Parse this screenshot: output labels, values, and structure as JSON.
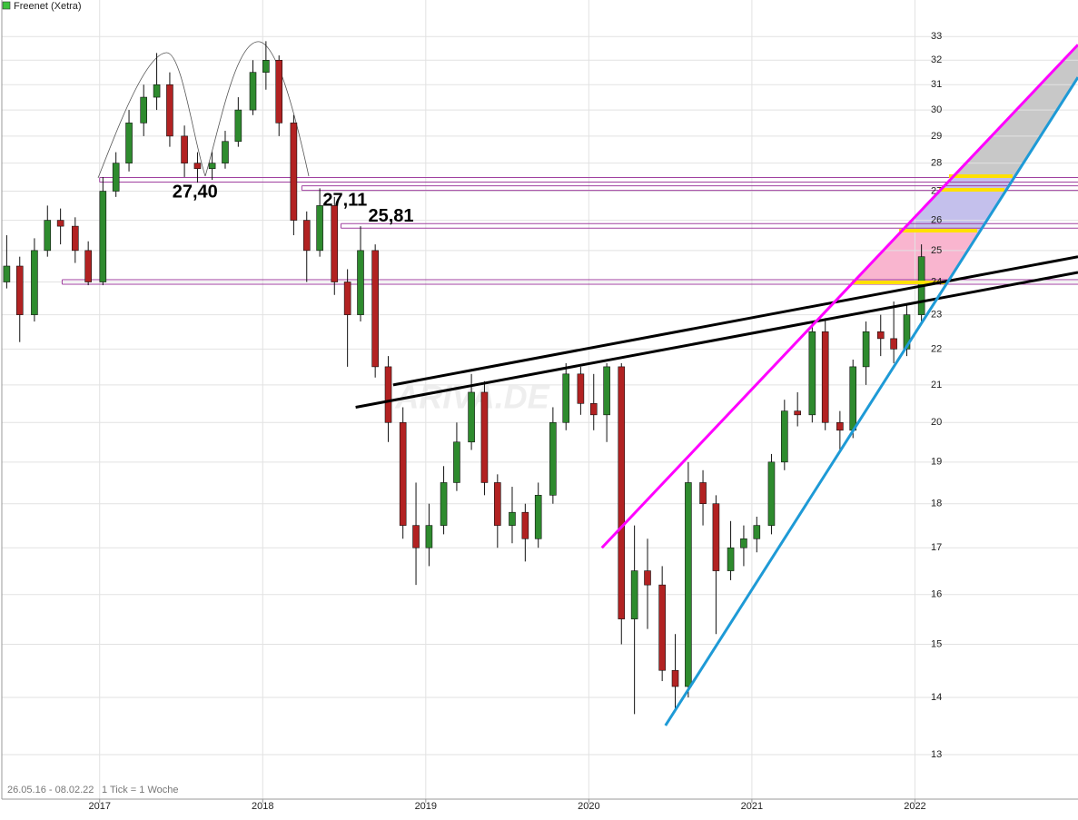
{
  "chart_data": {
    "type": "candlestick",
    "title": "Freenet (Xetra)",
    "subtitle": "26.05.16 - 08.02.22",
    "note": "1 Tick = 1 Woche",
    "watermark": "ARIVA.DE",
    "x": [
      2016.43,
      2016.51,
      2016.6,
      2016.68,
      2016.76,
      2016.85,
      2016.93,
      2017.02,
      2017.1,
      2017.18,
      2017.27,
      2017.35,
      2017.43,
      2017.52,
      2017.6,
      2017.69,
      2017.77,
      2017.85,
      2017.94,
      2018.02,
      2018.1,
      2018.19,
      2018.27,
      2018.35,
      2018.44,
      2018.52,
      2018.6,
      2018.69,
      2018.77,
      2018.86,
      2018.94,
      2019.02,
      2019.11,
      2019.19,
      2019.28,
      2019.36,
      2019.44,
      2019.53,
      2019.61,
      2019.69,
      2019.78,
      2019.86,
      2019.95,
      2020.03,
      2020.11,
      2020.2,
      2020.28,
      2020.36,
      2020.45,
      2020.53,
      2020.61,
      2020.7,
      2020.78,
      2020.87,
      2020.95,
      2021.03,
      2021.12,
      2021.2,
      2021.28,
      2021.37,
      2021.45,
      2021.54,
      2021.62,
      2021.7,
      2021.79,
      2021.87,
      2021.95,
      2022.04
    ],
    "open": [
      24.0,
      24.5,
      23.0,
      25.0,
      26.0,
      25.8,
      25.0,
      24.0,
      27.0,
      28.0,
      29.5,
      30.5,
      31.0,
      29.0,
      28.0,
      27.8,
      28.0,
      28.8,
      30.0,
      31.5,
      32.0,
      29.5,
      26.0,
      25.0,
      26.5,
      24.0,
      23.0,
      25.0,
      21.5,
      20.0,
      17.5,
      17.0,
      17.5,
      18.5,
      19.5,
      20.8,
      18.5,
      17.5,
      17.8,
      17.2,
      18.2,
      20.0,
      21.3,
      20.5,
      20.2,
      21.5,
      15.5,
      16.5,
      16.2,
      14.5,
      14.2,
      18.5,
      18.0,
      16.5,
      17.0,
      17.2,
      17.5,
      19.0,
      20.3,
      20.2,
      22.5,
      20.0,
      19.8,
      21.5,
      22.5,
      22.3,
      22.0,
      23.0
    ],
    "high": [
      25.5,
      24.8,
      25.4,
      26.5,
      26.4,
      26.1,
      25.3,
      27.5,
      28.4,
      30.0,
      31.0,
      32.3,
      31.5,
      29.4,
      28.4,
      28.4,
      29.2,
      30.5,
      32.0,
      32.8,
      32.2,
      29.8,
      26.3,
      27.1,
      26.8,
      24.4,
      25.8,
      25.2,
      21.8,
      20.4,
      18.5,
      18.0,
      18.9,
      20.0,
      21.3,
      21.1,
      18.7,
      18.4,
      18.0,
      18.5,
      20.4,
      21.6,
      21.5,
      21.3,
      21.6,
      21.6,
      17.5,
      17.2,
      16.6,
      15.2,
      19.0,
      18.8,
      18.2,
      17.6,
      17.5,
      17.7,
      19.2,
      20.6,
      20.8,
      22.8,
      22.9,
      20.3,
      21.7,
      22.8,
      23.0,
      23.4,
      23.3,
      25.2
    ],
    "low": [
      23.8,
      22.2,
      22.8,
      24.8,
      25.2,
      24.6,
      23.9,
      23.9,
      26.8,
      27.7,
      29.0,
      30.0,
      28.6,
      27.5,
      27.3,
      27.4,
      27.8,
      28.6,
      29.8,
      30.8,
      29.0,
      25.5,
      24.0,
      24.8,
      23.6,
      21.5,
      22.8,
      21.2,
      19.5,
      17.2,
      16.2,
      16.6,
      17.3,
      18.3,
      19.3,
      18.2,
      17.0,
      17.1,
      16.7,
      17.0,
      18.0,
      19.8,
      20.2,
      19.8,
      19.5,
      15.0,
      13.7,
      15.3,
      14.3,
      13.8,
      14.0,
      17.5,
      15.2,
      16.3,
      16.6,
      16.9,
      17.3,
      18.8,
      19.9,
      20.0,
      19.8,
      19.3,
      19.6,
      21.0,
      21.8,
      21.6,
      21.8,
      22.8
    ],
    "close": [
      24.5,
      23.0,
      25.0,
      26.0,
      25.8,
      25.0,
      24.0,
      27.0,
      28.0,
      29.5,
      30.5,
      31.0,
      29.0,
      28.0,
      27.8,
      28.0,
      28.8,
      30.0,
      31.5,
      32.0,
      29.5,
      26.0,
      25.0,
      26.5,
      24.0,
      23.0,
      25.0,
      21.5,
      20.0,
      17.5,
      17.0,
      17.5,
      18.5,
      19.5,
      20.8,
      18.5,
      17.5,
      17.8,
      17.2,
      18.2,
      20.0,
      21.3,
      20.5,
      20.2,
      21.5,
      15.5,
      16.5,
      16.2,
      14.5,
      14.2,
      18.5,
      18.0,
      16.5,
      17.0,
      17.2,
      17.5,
      19.0,
      20.3,
      20.2,
      22.5,
      20.0,
      19.8,
      21.5,
      22.5,
      22.3,
      22.0,
      23.0,
      24.8
    ],
    "up_color": "#2e8b2e",
    "down_color": "#b22222",
    "xlim": [
      2016.4,
      2023.0
    ],
    "xticks": [
      2017,
      2018,
      2019,
      2020,
      2021,
      2022
    ],
    "ylim": [
      12.27,
      34.6
    ],
    "yticks": [
      13,
      14,
      15,
      16,
      17,
      18,
      19,
      20,
      21,
      22,
      23,
      24,
      25,
      26,
      27,
      28,
      29,
      30,
      31,
      32,
      33
    ],
    "log_scale": true,
    "grid": true,
    "levels": [
      {
        "value": 27.4,
        "label": "27,40",
        "x_start": 2017.0
      },
      {
        "value": 27.11,
        "label": "27,11",
        "x_start": 2018.24
      },
      {
        "value": 25.81,
        "label": "25,81",
        "x_start": 2018.48
      },
      {
        "value": 24.0,
        "x_start": 2016.77
      }
    ],
    "level_color": "#a040a0",
    "trendlines": [
      {
        "color": "#000000",
        "x": [
          2018.8,
          2023.0
        ],
        "values": [
          21.0,
          24.8
        ]
      },
      {
        "color": "#000000",
        "x": [
          2018.57,
          2023.0
        ],
        "values": [
          20.4,
          24.3
        ]
      },
      {
        "color": "#ff00ff",
        "x": [
          2020.08,
          2023.0
        ],
        "values": [
          17.0,
          32.65
        ]
      },
      {
        "color": "#1e9ad6",
        "x": [
          2020.47,
          2023.0
        ],
        "values": [
          13.5,
          31.3
        ]
      }
    ]
  }
}
